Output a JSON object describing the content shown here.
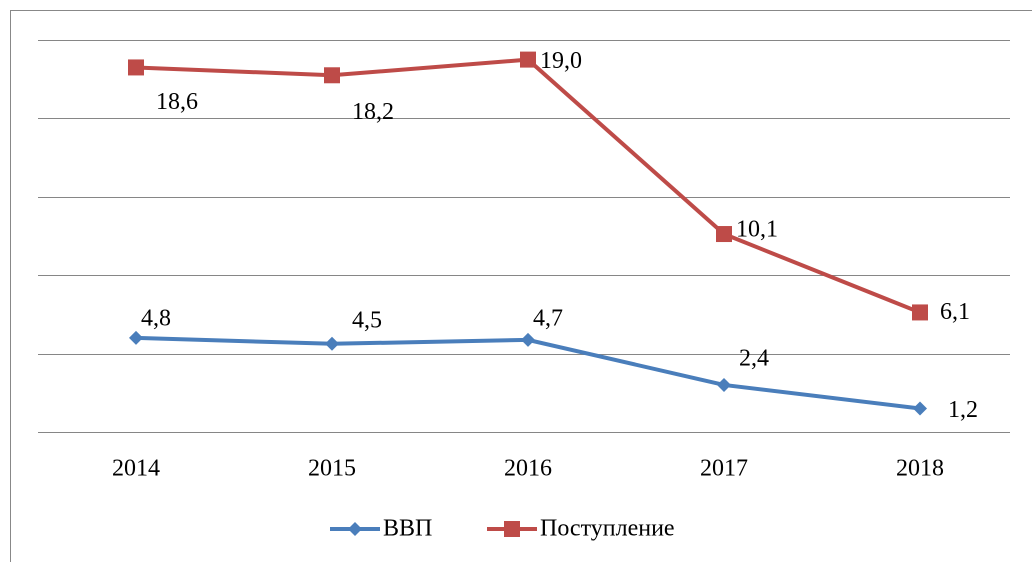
{
  "chart_data": {
    "type": "line",
    "categories": [
      "2014",
      "2015",
      "2016",
      "2017",
      "2018"
    ],
    "series": [
      {
        "name": "ВВП",
        "color": "#4a7ebb",
        "values": [
          4.8,
          4.5,
          4.7,
          2.4,
          1.2
        ],
        "value_labels": [
          "4,8",
          "4,5",
          "4,7",
          "2,4",
          "1,2"
        ]
      },
      {
        "name": "Поступление",
        "color": "#be4b48",
        "values": [
          18.6,
          18.2,
          19.0,
          10.1,
          6.1
        ],
        "value_labels": [
          "18,6",
          "18,2",
          "19,0",
          "10,1",
          "6,1"
        ]
      }
    ],
    "ylim": [
      0,
      20
    ],
    "yticks": [
      0,
      4,
      8,
      12,
      16,
      20
    ],
    "grid": true,
    "legend": "bottom"
  }
}
